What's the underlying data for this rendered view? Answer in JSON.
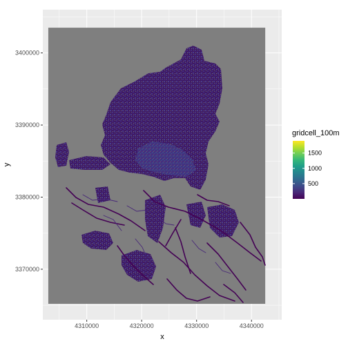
{
  "chart_data": {
    "type": "heatmap",
    "xlabel": "x",
    "ylabel": "y",
    "x_ticks": [
      4310000,
      4320000,
      4330000,
      4340000
    ],
    "x_tick_labels": [
      "4310000",
      "4320000",
      "4330000",
      "4340000"
    ],
    "y_ticks": [
      3370000,
      3380000,
      3390000,
      3400000
    ],
    "y_tick_labels": [
      "3370000",
      "3380000",
      "3390000",
      "3400000"
    ],
    "xlim": [
      4302000,
      4345500
    ],
    "ylim": [
      3363000,
      3406000
    ],
    "raster_extent": {
      "x": [
        4303000,
        4342500
      ],
      "y": [
        3365200,
        3403500
      ]
    },
    "na_color": "#7f7f7f",
    "panel_background": "#ebebeb",
    "grid": true,
    "legend": {
      "title": "gridcell_100m",
      "placement": "right",
      "range": [
        1,
        1900
      ],
      "breaks": [
        500,
        1000,
        1500
      ],
      "break_labels": [
        "500",
        "1000",
        "1500"
      ],
      "colors": [
        "#440154",
        "#482878",
        "#3e4a89",
        "#31688e",
        "#26828e",
        "#1f9e89",
        "#35b779",
        "#6ece58",
        "#b5de2b",
        "#fde725"
      ]
    },
    "dominant_value_range": [
      1,
      500
    ]
  }
}
